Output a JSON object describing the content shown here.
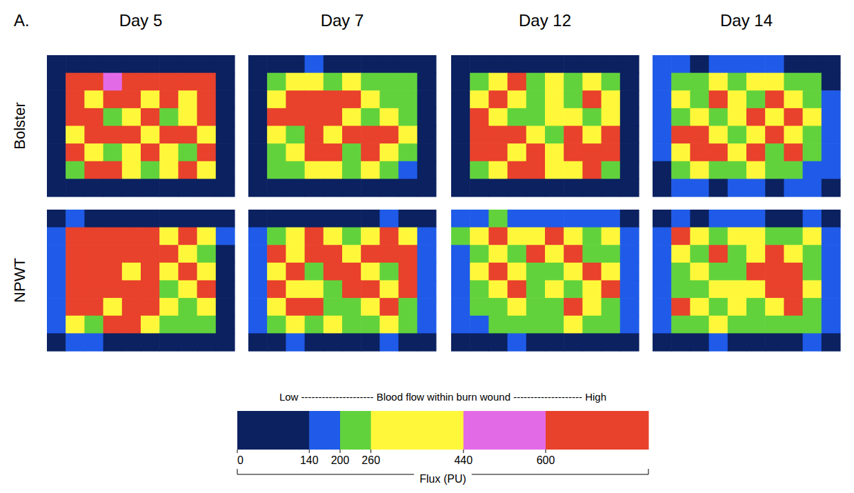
{
  "chart_data": {
    "type": "heatmap",
    "label": "A.",
    "tick_labels": false,
    "columns": [
      "Day 5",
      "Day 7",
      "Day 12",
      "Day 14"
    ],
    "rows": [
      "Bolster",
      "NPWT"
    ],
    "cells": [
      [
        [
          [
            90,
            90,
            100,
            90,
            90,
            100,
            90,
            90,
            100,
            90
          ],
          [
            90,
            700,
            700,
            520,
            700,
            700,
            700,
            700,
            700,
            100
          ],
          [
            90,
            700,
            350,
            700,
            700,
            350,
            700,
            350,
            700,
            90
          ],
          [
            100,
            700,
            700,
            230,
            350,
            700,
            230,
            350,
            700,
            90
          ],
          [
            90,
            350,
            700,
            700,
            700,
            350,
            700,
            700,
            350,
            100
          ],
          [
            90,
            700,
            350,
            230,
            350,
            700,
            350,
            230,
            700,
            90
          ],
          [
            90,
            230,
            700,
            700,
            350,
            230,
            350,
            700,
            350,
            90
          ],
          [
            90,
            100,
            90,
            90,
            100,
            90,
            90,
            100,
            90,
            90
          ]
        ],
        [
          [
            90,
            100,
            90,
            170,
            90,
            90,
            100,
            90,
            90,
            90
          ],
          [
            90,
            230,
            350,
            350,
            230,
            350,
            230,
            230,
            230,
            100
          ],
          [
            90,
            350,
            700,
            700,
            700,
            700,
            350,
            230,
            230,
            90
          ],
          [
            100,
            700,
            700,
            700,
            700,
            350,
            230,
            350,
            230,
            90
          ],
          [
            90,
            350,
            230,
            700,
            350,
            700,
            700,
            700,
            350,
            100
          ],
          [
            90,
            230,
            350,
            700,
            700,
            230,
            700,
            350,
            230,
            90
          ],
          [
            90,
            230,
            230,
            350,
            350,
            230,
            350,
            230,
            170,
            90
          ],
          [
            90,
            100,
            90,
            90,
            100,
            90,
            90,
            100,
            90,
            90
          ]
        ],
        [
          [
            90,
            90,
            100,
            90,
            90,
            100,
            90,
            90,
            100,
            90
          ],
          [
            90,
            230,
            350,
            700,
            230,
            350,
            230,
            350,
            230,
            100
          ],
          [
            90,
            350,
            700,
            350,
            230,
            350,
            230,
            700,
            350,
            90
          ],
          [
            100,
            700,
            350,
            230,
            230,
            350,
            350,
            230,
            350,
            90
          ],
          [
            90,
            700,
            700,
            700,
            350,
            230,
            700,
            350,
            700,
            100
          ],
          [
            90,
            700,
            700,
            350,
            700,
            350,
            700,
            700,
            700,
            90
          ],
          [
            90,
            230,
            350,
            700,
            700,
            350,
            350,
            700,
            230,
            90
          ],
          [
            90,
            100,
            90,
            100,
            90,
            90,
            100,
            90,
            90,
            90
          ]
        ],
        [
          [
            170,
            170,
            100,
            170,
            170,
            170,
            170,
            100,
            90,
            90
          ],
          [
            170,
            230,
            230,
            350,
            230,
            350,
            350,
            230,
            230,
            100
          ],
          [
            170,
            350,
            230,
            700,
            350,
            230,
            700,
            350,
            230,
            170
          ],
          [
            170,
            230,
            350,
            230,
            350,
            700,
            350,
            700,
            350,
            170
          ],
          [
            170,
            700,
            700,
            350,
            230,
            350,
            700,
            350,
            230,
            170
          ],
          [
            170,
            350,
            700,
            700,
            350,
            700,
            230,
            700,
            230,
            170
          ],
          [
            100,
            230,
            350,
            230,
            230,
            350,
            230,
            230,
            170,
            170
          ],
          [
            90,
            170,
            170,
            100,
            170,
            170,
            100,
            170,
            170,
            100
          ]
        ]
      ],
      [
        [
          [
            100,
            170,
            100,
            100,
            90,
            100,
            90,
            100,
            90,
            100
          ],
          [
            170,
            700,
            700,
            700,
            700,
            700,
            350,
            700,
            350,
            170
          ],
          [
            170,
            700,
            700,
            700,
            700,
            700,
            700,
            350,
            230,
            100
          ],
          [
            170,
            700,
            700,
            700,
            350,
            700,
            350,
            700,
            350,
            100
          ],
          [
            170,
            700,
            700,
            700,
            700,
            700,
            230,
            350,
            700,
            100
          ],
          [
            170,
            700,
            700,
            350,
            700,
            700,
            350,
            230,
            350,
            100
          ],
          [
            170,
            350,
            230,
            700,
            700,
            350,
            230,
            230,
            230,
            100
          ],
          [
            100,
            170,
            170,
            100,
            100,
            100,
            100,
            100,
            100,
            90
          ]
        ],
        [
          [
            100,
            100,
            100,
            100,
            90,
            90,
            100,
            170,
            100,
            100
          ],
          [
            170,
            230,
            350,
            700,
            350,
            230,
            350,
            700,
            350,
            170
          ],
          [
            170,
            700,
            350,
            700,
            700,
            350,
            700,
            700,
            700,
            170
          ],
          [
            170,
            350,
            700,
            230,
            700,
            700,
            350,
            230,
            700,
            170
          ],
          [
            170,
            700,
            350,
            350,
            230,
            700,
            700,
            350,
            700,
            170
          ],
          [
            170,
            350,
            700,
            700,
            230,
            230,
            350,
            700,
            230,
            170
          ],
          [
            170,
            230,
            350,
            230,
            350,
            230,
            230,
            350,
            230,
            170
          ],
          [
            100,
            100,
            170,
            100,
            100,
            100,
            100,
            170,
            100,
            100
          ]
        ],
        [
          [
            170,
            170,
            230,
            170,
            170,
            170,
            170,
            170,
            170,
            100
          ],
          [
            230,
            350,
            700,
            350,
            350,
            700,
            350,
            230,
            350,
            170
          ],
          [
            170,
            230,
            350,
            230,
            700,
            350,
            700,
            230,
            230,
            170
          ],
          [
            170,
            350,
            700,
            350,
            230,
            230,
            350,
            700,
            350,
            170
          ],
          [
            170,
            230,
            350,
            700,
            230,
            350,
            230,
            350,
            700,
            170
          ],
          [
            170,
            230,
            230,
            350,
            230,
            230,
            700,
            350,
            230,
            170
          ],
          [
            170,
            170,
            230,
            230,
            230,
            230,
            350,
            230,
            230,
            170
          ],
          [
            100,
            100,
            100,
            170,
            100,
            100,
            100,
            100,
            100,
            90
          ]
        ],
        [
          [
            100,
            170,
            100,
            170,
            170,
            170,
            100,
            100,
            170,
            100
          ],
          [
            170,
            700,
            350,
            230,
            350,
            350,
            230,
            230,
            350,
            170
          ],
          [
            170,
            350,
            230,
            700,
            230,
            350,
            700,
            350,
            230,
            170
          ],
          [
            170,
            230,
            350,
            230,
            230,
            700,
            700,
            700,
            230,
            170
          ],
          [
            170,
            230,
            230,
            350,
            350,
            350,
            700,
            700,
            350,
            170
          ],
          [
            170,
            700,
            350,
            230,
            350,
            230,
            350,
            700,
            230,
            170
          ],
          [
            170,
            230,
            230,
            350,
            230,
            230,
            230,
            230,
            230,
            170
          ],
          [
            100,
            100,
            100,
            170,
            100,
            100,
            100,
            100,
            170,
            100
          ]
        ]
      ]
    ],
    "colorbar": {
      "caption": "Low --------------------- Blood flow within burn wound -------------------- High",
      "title": "Flux (PU)",
      "range": [
        0,
        800
      ],
      "ticks": [
        0,
        140,
        200,
        260,
        440,
        600
      ],
      "colors": [
        "#0b2160",
        "#1f5be8",
        "#62d23c",
        "#fff83a",
        "#e36ae6",
        "#e8412c"
      ]
    }
  }
}
